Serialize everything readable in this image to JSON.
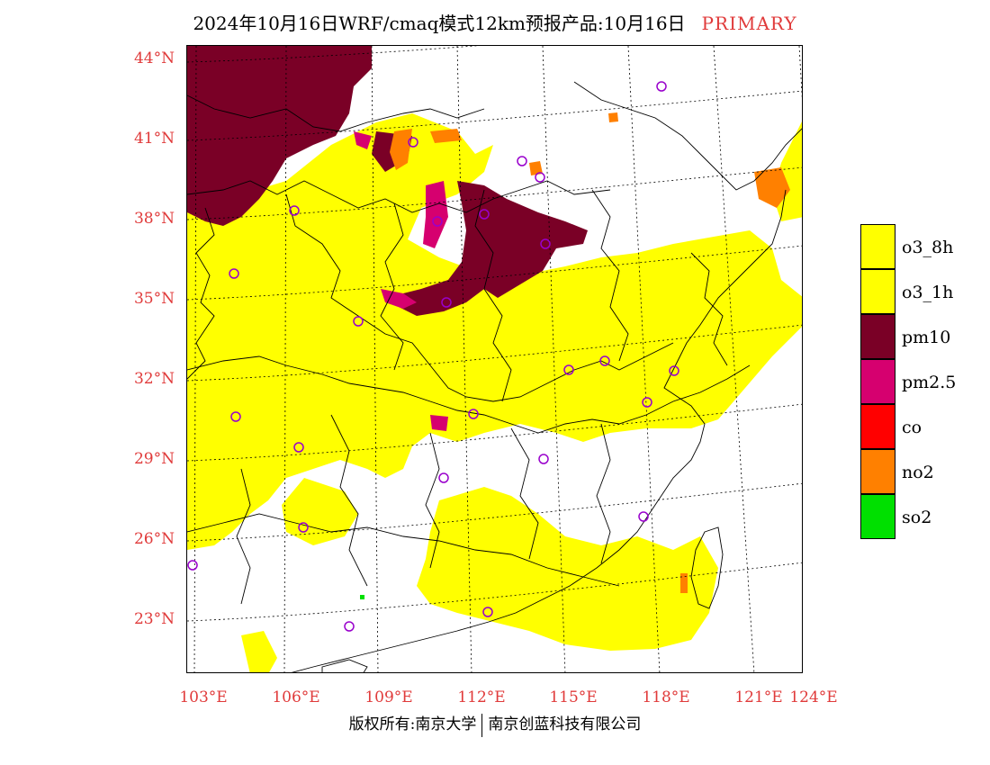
{
  "title": {
    "main": "2024年10月16日WRF/cmaq模式12km预报产品:10月16日",
    "tag": "PRIMARY"
  },
  "map": {
    "lat_labels": [
      "44°N",
      "41°N",
      "38°N",
      "35°N",
      "32°N",
      "29°N",
      "26°N",
      "23°N"
    ],
    "lon_labels": [
      "103°E",
      "106°E",
      "109°E",
      "112°E",
      "115°E",
      "118°E",
      "121°E",
      "124°E"
    ],
    "colors": {
      "o3_8h": "#ffff00",
      "o3_1h": "#ffff00",
      "pm10": "#7a0026",
      "pm2_5": "#d6006f",
      "co": "#ff0000",
      "no2": "#ff8000",
      "so2": "#00e000",
      "station": "#9900cc",
      "boundary": "#000000",
      "grid": "#000000"
    }
  },
  "legend": {
    "items": [
      {
        "label": "o3_8h",
        "color": "#ffff00"
      },
      {
        "label": "o3_1h",
        "color": "#ffff00"
      },
      {
        "label": "pm10",
        "color": "#7a0026"
      },
      {
        "label": "pm2.5",
        "color": "#d6006f"
      },
      {
        "label": "co",
        "color": "#ff0000"
      },
      {
        "label": "no2",
        "color": "#ff8000"
      },
      {
        "label": "so2",
        "color": "#00e000"
      }
    ]
  },
  "footer": {
    "left": "版权所有:南京大学",
    "right": "南京创蓝科技有限公司"
  }
}
